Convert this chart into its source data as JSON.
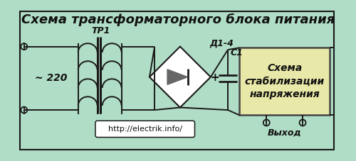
{
  "bg_color": "#b0ddc5",
  "title": "Схема трансформаторного блока питания",
  "title_fontsize": 13,
  "label_tr1": "ТР1",
  "label_d14": "Д1-4",
  "label_c1": "С1",
  "label_220": "~ 220",
  "label_box": "Схема\nстабилизации\nнапряжения",
  "label_url": "http://electrik.info/",
  "label_output": "Выход",
  "label_plus": "+",
  "line_color": "#1a1a1a",
  "text_color": "#111111",
  "stabilizer_facecolor": "#e8e8a8",
  "stabilizer_edgecolor": "#444444",
  "diode_fill": "#666666",
  "white": "#ffffff"
}
